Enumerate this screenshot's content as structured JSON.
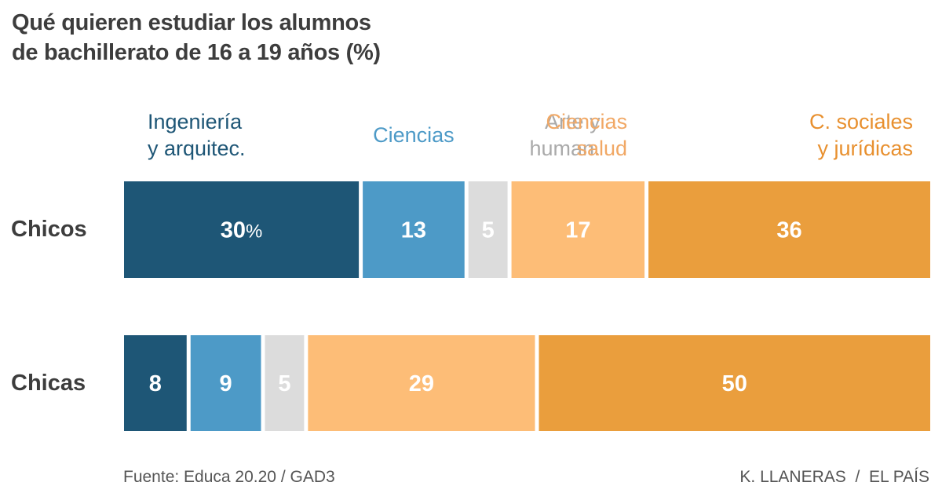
{
  "chart_data": {
    "type": "bar",
    "orientation": "horizontal-stacked",
    "title": "Qué quieren estudiar los alumnos de bachillerato de 16 a 19 años (%)",
    "title_lines": [
      "Qué quieren estudiar los alumnos",
      "de bachillerato de 16 a 19 años (%)"
    ],
    "categories": [
      "Chicos",
      "Chicas"
    ],
    "series": [
      {
        "name": "Ingeniería y arquitec.",
        "label_lines": [
          "Ingeniería",
          "y arquitec."
        ],
        "color": "#1e5676",
        "label_color": "#1e5676",
        "align": "left",
        "values": [
          30,
          8
        ]
      },
      {
        "name": "Ciencias",
        "label_lines": [
          "Ciencias"
        ],
        "color": "#4d9ac7",
        "label_color": "#4d9ac7",
        "align": "center",
        "values": [
          13,
          9
        ]
      },
      {
        "name": "Arte y human.",
        "label_lines": [
          "Arte y",
          "human."
        ],
        "color": "#dcdcdc",
        "label_color": "#aaaaaa",
        "align": "right",
        "values": [
          5,
          5
        ]
      },
      {
        "name": "Ciencias salud",
        "label_lines": [
          "Ciencias",
          "salud"
        ],
        "color": "#fdbd77",
        "label_color": "#f1a865",
        "align": "right",
        "values": [
          17,
          29
        ]
      },
      {
        "name": "C. sociales y jurídicas",
        "label_lines": [
          "C. sociales",
          "y jurídicas"
        ],
        "color": "#ea9e3d",
        "label_color": "#e8902f",
        "align": "right",
        "values": [
          36,
          50
        ]
      }
    ],
    "first_value_suffix": "%",
    "xlabel": "",
    "ylabel": "",
    "grid": false,
    "legend": "top"
  },
  "footer": {
    "source": "Fuente: Educa 20.20 / GAD3",
    "credit": "K. LLANERAS  /  EL PAÍS"
  }
}
